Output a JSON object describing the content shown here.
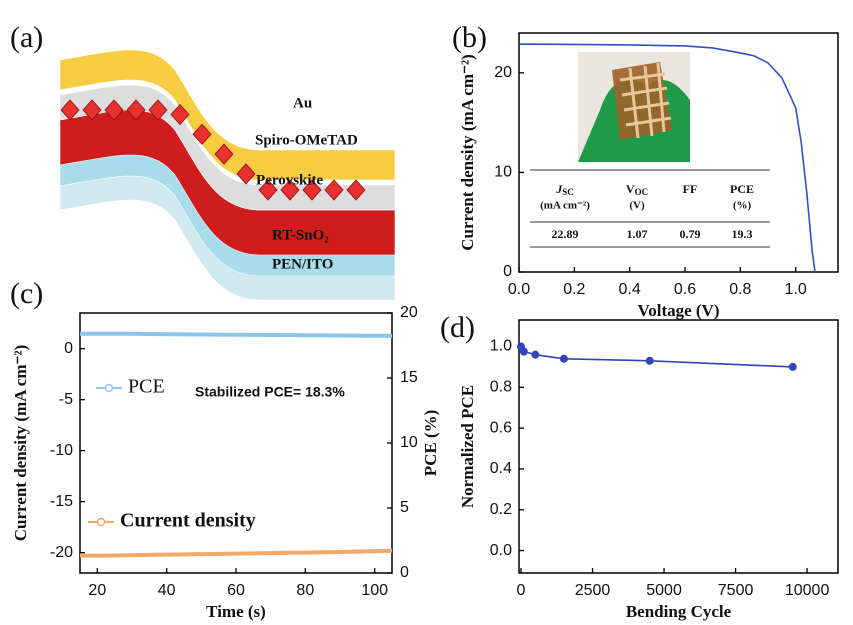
{
  "panel_a": {
    "label": "(a)",
    "layers": [
      "Au",
      "Spiro-OMeTAD",
      "Perovskite",
      "RT-SnO₂",
      "PEN/ITO"
    ]
  },
  "chart_data": [
    {
      "type": "line",
      "panel_label": "(b)",
      "xlabel": "Voltage (V)",
      "ylabel": "Current density (mA cm⁻²)",
      "x": [
        0,
        0.2,
        0.4,
        0.6,
        0.7,
        0.8,
        0.85,
        0.9,
        0.95,
        1.0,
        1.02,
        1.04,
        1.06,
        1.07
      ],
      "series": [
        {
          "color": "#2f4fc4",
          "values": [
            22.89,
            22.85,
            22.8,
            22.7,
            22.5,
            22.0,
            21.7,
            21.0,
            19.5,
            16.5,
            13.0,
            8.0,
            2.0,
            0
          ]
        }
      ],
      "xlim": [
        0,
        1.153
      ],
      "ylim": [
        0,
        24
      ],
      "xticks": [
        {
          "value": 0,
          "label": "0.0"
        },
        {
          "value": 0.2,
          "label": "0.2"
        },
        {
          "value": 0.4,
          "label": "0.4"
        },
        {
          "value": 0.6,
          "label": "0.6"
        },
        {
          "value": 0.8,
          "label": "0.8"
        },
        {
          "value": 1.0,
          "label": "1.0"
        }
      ],
      "yticks": [
        0,
        10,
        20
      ],
      "table": {
        "header": [
          {
            "main": "J",
            "sub": "SC",
            "unit": "(mA cm⁻²)"
          },
          {
            "main": "V",
            "sub": "OC",
            "unit": "(V)"
          },
          {
            "main": "FF"
          },
          {
            "main": "PCE",
            "unit": "(%)"
          }
        ],
        "rows": [
          [
            22.89,
            1.07,
            0.79,
            19.3
          ]
        ]
      }
    },
    {
      "type": "line",
      "panel_label": "(c)",
      "xlabel": "Time (s)",
      "ylabel": "Current density (mA cm⁻²)",
      "y2label": "PCE (%)",
      "annotation": "Stabilized PCE= 18.3%",
      "x": [
        15,
        20,
        25,
        30,
        35,
        40,
        45,
        50,
        55,
        60,
        65,
        70,
        75,
        80,
        85,
        90,
        95,
        100,
        105
      ],
      "series": [
        {
          "name": "PCE",
          "color": "#8cc4ea",
          "axis": "y2",
          "values": [
            18.4,
            18.4,
            18.4,
            18.4,
            18.38,
            18.37,
            18.36,
            18.35,
            18.34,
            18.33,
            18.32,
            18.31,
            18.3,
            18.29,
            18.28,
            18.27,
            18.26,
            18.25,
            18.24
          ]
        },
        {
          "name": "Current density",
          "color": "#f2a868",
          "values": [
            -20.3,
            -20.3,
            -20.28,
            -20.25,
            -20.22,
            -20.2,
            -20.17,
            -20.15,
            -20.12,
            -20.1,
            -20.08,
            -20.05,
            -20.02,
            -20.0,
            -19.97,
            -19.94,
            -19.9,
            -19.86,
            -19.82
          ]
        }
      ],
      "xlim": [
        15,
        105
      ],
      "ylim": [
        -22,
        3.5
      ],
      "y2lim": [
        0,
        20
      ],
      "xticks": [
        20,
        40,
        60,
        80,
        100
      ],
      "yticks": [
        0,
        -5,
        -10,
        -15,
        -20
      ],
      "y2ticks": [
        0,
        5,
        10,
        15,
        20
      ]
    },
    {
      "type": "line",
      "panel_label": "(d)",
      "xlabel": "Bending Cycle",
      "ylabel": "Normalized PCE",
      "markers": true,
      "x": [
        0,
        100,
        500,
        1500,
        4500,
        9500
      ],
      "series": [
        {
          "color": "#2f45b8",
          "values": [
            1.0,
            0.975,
            0.96,
            0.94,
            0.93,
            0.9
          ]
        }
      ],
      "xlim": [
        -70,
        11080
      ],
      "ylim": [
        -0.11,
        1.13
      ],
      "xticks": [
        0,
        2500,
        5000,
        7500,
        10000
      ],
      "yticks": [
        {
          "value": 0,
          "label": "0.0"
        },
        {
          "value": 0.2,
          "label": "0.2"
        },
        {
          "value": 0.4,
          "label": "0.4"
        },
        {
          "value": 0.6,
          "label": "0.6"
        },
        {
          "value": 0.8,
          "label": "0.8"
        },
        {
          "value": 1.0,
          "label": "1.0"
        }
      ]
    }
  ]
}
